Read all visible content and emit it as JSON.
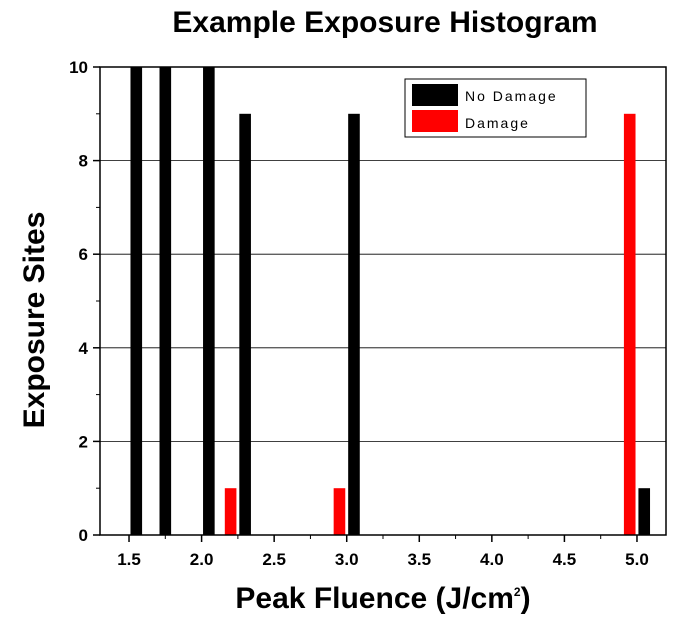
{
  "chart_data": {
    "type": "bar",
    "title": "Example Exposure Histogram",
    "xlabel": "Peak Fluence (J/cm",
    "xlabel_sup": "2",
    "xlabel_close": ")",
    "ylabel": "Exposure Sites",
    "xlim": [
      1.3,
      5.2
    ],
    "ylim": [
      0,
      10
    ],
    "x_ticks": [
      1.5,
      2.0,
      2.5,
      3.0,
      3.5,
      4.0,
      4.5,
      5.0
    ],
    "x_tick_labels": [
      "1.5",
      "2.0",
      "2.5",
      "3.0",
      "3.5",
      "4.0",
      "4.5",
      "5.0"
    ],
    "y_ticks": [
      0,
      2,
      4,
      6,
      8,
      10
    ],
    "y_tick_labels": [
      "0",
      "2",
      "4",
      "6",
      "8",
      "10"
    ],
    "grid": "horizontal",
    "legend_position": "top-right",
    "series": [
      {
        "name": "No Damage",
        "color": "#000000",
        "points": [
          {
            "x": 1.55,
            "y": 10
          },
          {
            "x": 1.75,
            "y": 10
          },
          {
            "x": 2.05,
            "y": 10
          },
          {
            "x": 2.3,
            "y": 9
          },
          {
            "x": 3.05,
            "y": 9
          },
          {
            "x": 5.05,
            "y": 1
          }
        ]
      },
      {
        "name": "Damage",
        "color": "#ff0000",
        "points": [
          {
            "x": 2.2,
            "y": 1
          },
          {
            "x": 2.95,
            "y": 1
          },
          {
            "x": 4.95,
            "y": 9
          }
        ]
      }
    ]
  }
}
